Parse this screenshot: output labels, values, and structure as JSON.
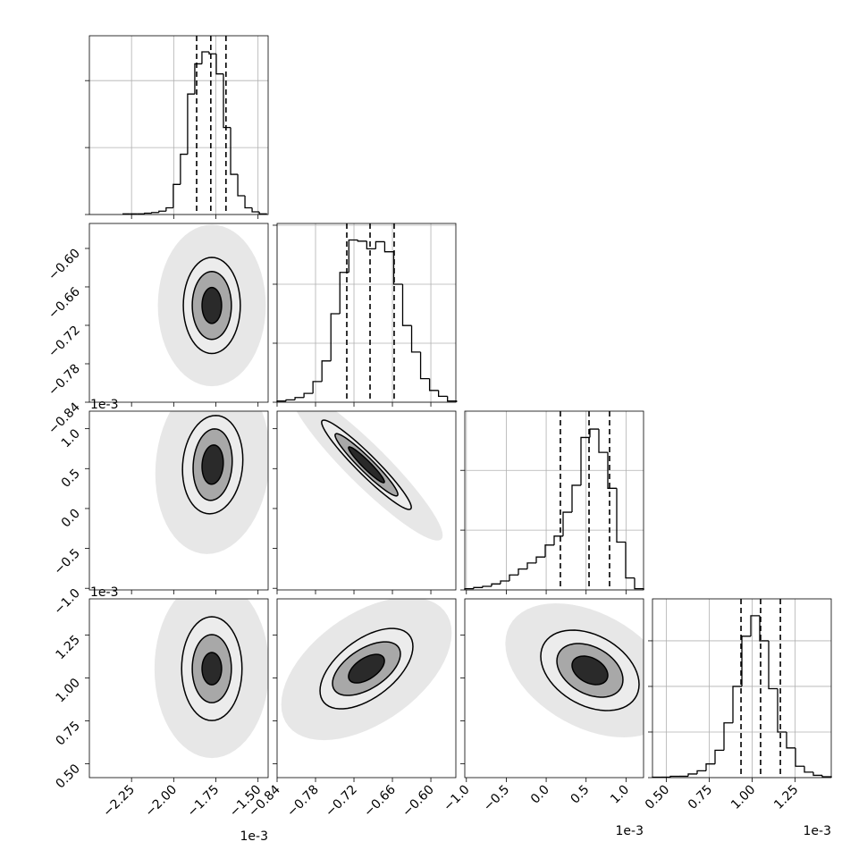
{
  "chart_data": {
    "type": "corner",
    "parameters": [
      {
        "lim": [
          -2.5,
          -1.44
        ],
        "offset": "1e-3",
        "ticks": [
          {
            "value": -2.25,
            "label": "−2.25"
          },
          {
            "value": -2.0,
            "label": "−2.00"
          },
          {
            "value": -1.75,
            "label": "−1.75"
          },
          {
            "value": -1.5,
            "label": "−1.50"
          }
        ]
      },
      {
        "lim": [
          -0.84,
          -0.561
        ],
        "ticks": [
          {
            "value": -0.84,
            "label": "−0.84"
          },
          {
            "value": -0.78,
            "label": "−0.78"
          },
          {
            "value": -0.72,
            "label": "−0.72"
          },
          {
            "value": -0.66,
            "label": "−0.66"
          },
          {
            "value": -0.6,
            "label": "−0.60"
          }
        ]
      },
      {
        "lim": [
          -1.02,
          1.22
        ],
        "offset": "1e-3",
        "ticks": [
          {
            "value": -1.0,
            "label": "−1.0"
          },
          {
            "value": -0.5,
            "label": "−0.5"
          },
          {
            "value": 0.0,
            "label": "0.0"
          },
          {
            "value": 0.5,
            "label": "0.5"
          },
          {
            "value": 1.0,
            "label": "1.0"
          }
        ]
      },
      {
        "lim": [
          0.42,
          1.46
        ],
        "offset": "1e-3",
        "ticks": [
          {
            "value": 0.5,
            "label": "0.50"
          },
          {
            "value": 0.75,
            "label": "0.75"
          },
          {
            "value": 1.0,
            "label": "1.00"
          },
          {
            "value": 1.25,
            "label": "1.25"
          }
        ]
      }
    ],
    "histograms": [
      {
        "bins": [
          -2.3,
          -2.2575,
          -2.215,
          -2.1725,
          -2.13,
          -2.0875,
          -2.045,
          -2.0025,
          -1.96,
          -1.9175,
          -1.875,
          -1.8325,
          -1.79,
          -1.7475,
          -1.705,
          -1.6625,
          -1.62,
          -1.5775,
          -1.535,
          -1.4925,
          -1.45
        ],
        "counts": [
          0.01,
          0.01,
          0.01,
          0.02,
          0.03,
          0.05,
          0.1,
          0.45,
          0.9,
          1.8,
          2.25,
          2.43,
          2.4,
          2.1,
          1.3,
          0.6,
          0.28,
          0.1,
          0.04,
          0.01
        ],
        "ylim": [
          0,
          2.67
        ],
        "yticks": [
          0,
          1,
          2
        ],
        "quantiles": [
          -1.864,
          -1.78,
          -1.69
        ]
      },
      {
        "bins": [
          -0.84,
          -0.826,
          -0.812,
          -0.798,
          -0.784,
          -0.77,
          -0.756,
          -0.742,
          -0.728,
          -0.714,
          -0.7,
          -0.686,
          -0.672,
          -0.658,
          -0.644,
          -0.63,
          -0.616,
          -0.602,
          -0.588,
          -0.574,
          -0.56
        ],
        "counts": [
          0.02,
          0.04,
          0.08,
          0.15,
          0.35,
          0.7,
          1.5,
          2.2,
          2.75,
          2.73,
          2.6,
          2.72,
          2.55,
          2.0,
          1.3,
          0.85,
          0.4,
          0.2,
          0.1,
          0.02
        ],
        "ylim": [
          0,
          3.03
        ],
        "yticks": [
          0,
          1,
          2,
          3
        ],
        "quantiles": [
          -0.7312,
          -0.6949,
          -0.6573
        ]
      },
      {
        "bins": [
          -1.02,
          -0.908,
          -0.796,
          -0.684,
          -0.572,
          -0.46,
          -0.348,
          -0.236,
          -0.124,
          -0.012,
          0.1,
          0.212,
          0.324,
          0.436,
          0.548,
          0.66,
          0.772,
          0.884,
          0.996,
          1.108,
          1.22
        ],
        "counts": [
          0.02,
          0.04,
          0.06,
          0.1,
          0.15,
          0.25,
          0.35,
          0.45,
          0.55,
          0.75,
          0.9,
          1.3,
          1.75,
          2.55,
          2.69,
          2.3,
          1.7,
          0.8,
          0.2,
          0.02
        ],
        "ylim": [
          0,
          2.99
        ],
        "yticks": [
          0,
          1,
          2
        ],
        "quantiles": [
          0.178,
          0.537,
          0.794
        ]
      },
      {
        "bins": [
          0.42,
          0.472,
          0.524,
          0.576,
          0.628,
          0.68,
          0.732,
          0.784,
          0.836,
          0.888,
          0.94,
          0.992,
          1.044,
          1.096,
          1.148,
          1.2,
          1.252,
          1.304,
          1.356,
          1.408,
          1.46
        ],
        "counts": [
          0.01,
          0.01,
          0.03,
          0.03,
          0.08,
          0.15,
          0.3,
          0.6,
          1.2,
          2.0,
          3.1,
          3.55,
          3.0,
          1.95,
          1.0,
          0.65,
          0.25,
          0.12,
          0.05,
          0.02
        ],
        "ylim": [
          0,
          3.92
        ],
        "yticks": [
          0,
          1,
          2,
          3
        ],
        "quantiles": [
          0.935,
          1.049,
          1.164
        ]
      }
    ],
    "panels": [
      {
        "x": 0,
        "y": 1,
        "center": [
          -1.774,
          -0.689
        ],
        "cloud": {
          "rx": 0.32,
          "ry": 0.126,
          "rho": 0
        },
        "rho": 0,
        "levels": [
          [
            0.169,
            0.075
          ],
          [
            0.116,
            0.053
          ],
          [
            0.058,
            0.028
          ]
        ]
      },
      {
        "x": 0,
        "y": 2,
        "center": [
          -1.769,
          0.55
        ],
        "cloud": {
          "rx": 0.34,
          "ry": 1.12,
          "rho": 0.1
        },
        "rho": 0.1,
        "levels": [
          [
            0.179,
            0.616
          ],
          [
            0.116,
            0.448
          ],
          [
            0.063,
            0.246
          ]
        ]
      },
      {
        "x": 1,
        "y": 2,
        "center": [
          -0.7005,
          0.548
        ],
        "cloud": {
          "rx": 0.119,
          "ry": 0.95,
          "rho": -0.93
        },
        "rho": -0.95,
        "levels": [
          [
            0.07,
            0.56
          ],
          [
            0.049,
            0.39
          ],
          [
            0.028,
            0.224
          ]
        ]
      },
      {
        "x": 0,
        "y": 3,
        "center": [
          -1.774,
          1.054
        ],
        "cloud": {
          "rx": 0.34,
          "ry": 0.52,
          "rho": 0
        },
        "rho": 0,
        "levels": [
          [
            0.179,
            0.302
          ],
          [
            0.116,
            0.198
          ],
          [
            0.058,
            0.094
          ]
        ]
      },
      {
        "x": 1,
        "y": 3,
        "center": [
          -0.7005,
          1.054
        ],
        "cloud": {
          "rx": 0.133,
          "ry": 0.416,
          "rho": 0.5
        },
        "rho": 0.55,
        "levels": [
          [
            0.0725,
            0.234
          ],
          [
            0.053,
            0.156
          ],
          [
            0.028,
            0.083
          ]
        ]
      },
      {
        "x": 2,
        "y": 3,
        "center": [
          0.548,
          1.044
        ],
        "cloud": {
          "rx": 1.06,
          "ry": 0.39,
          "rho": -0.4
        },
        "rho": -0.35,
        "levels": [
          [
            0.616,
            0.234
          ],
          [
            0.414,
            0.156
          ],
          [
            0.224,
            0.083
          ]
        ]
      }
    ],
    "cloud_fill": "#d4d4d4",
    "level_fills": [
      "#ececec",
      "#a8a8a8",
      "#2a2a2a"
    ],
    "grid": true
  }
}
